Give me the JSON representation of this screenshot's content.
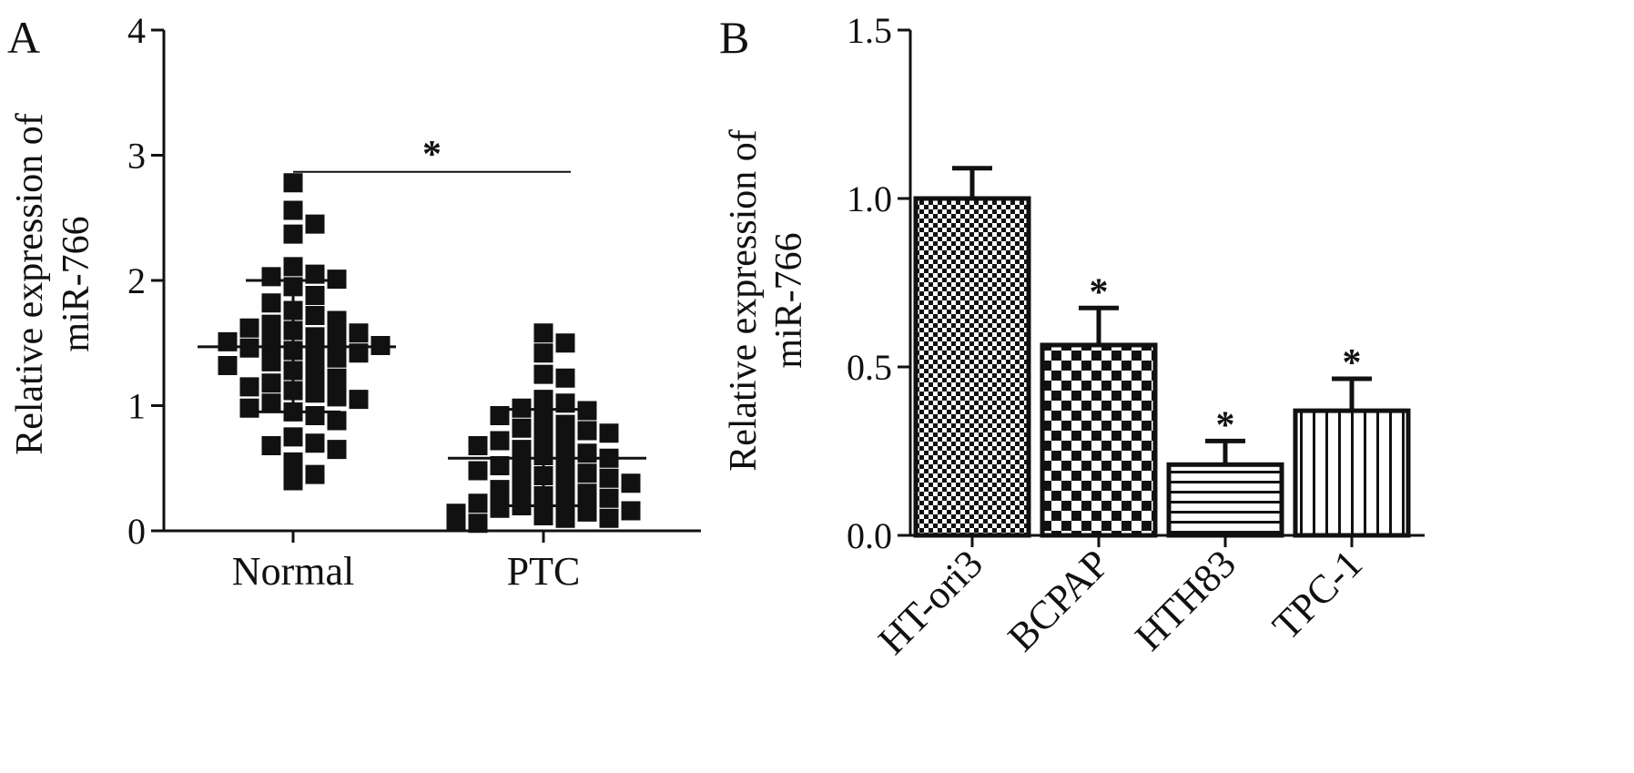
{
  "panel_a": {
    "letter": "A"
  },
  "panel_b": {
    "letter": "B"
  },
  "chart_data": [
    {
      "type": "scatter",
      "categories": [
        "Normal",
        "PTC"
      ],
      "ylabel_line1": "Relative expression of",
      "ylabel_line2": "miR-766",
      "ylim": [
        0,
        4
      ],
      "yticks": [
        0,
        1,
        2,
        3,
        4
      ],
      "marker_color": "#111111",
      "groups": [
        {
          "name": "Normal",
          "mean": 1.47,
          "sd_upper": 2.0,
          "sd_lower": 0.95,
          "points": [
            2.78,
            2.56,
            2.45,
            2.37,
            2.11,
            2.05,
            2.03,
            2.01,
            1.95,
            1.88,
            1.82,
            1.76,
            1.72,
            1.68,
            1.65,
            1.62,
            1.6,
            1.58,
            1.55,
            1.53,
            1.51,
            1.5,
            1.48,
            1.46,
            1.44,
            1.42,
            1.4,
            1.38,
            1.35,
            1.32,
            1.28,
            1.25,
            1.22,
            1.18,
            1.15,
            1.12,
            1.1,
            1.07,
            1.05,
            1.02,
            0.98,
            0.95,
            0.92,
            0.88,
            0.75,
            0.7,
            0.68,
            0.65,
            0.55,
            0.45,
            0.4
          ]
        },
        {
          "name": "PTC",
          "mean": 0.58,
          "sd_upper": 0.97,
          "sd_lower": 0.2,
          "points": [
            1.58,
            1.5,
            1.42,
            1.25,
            1.22,
            1.05,
            1.02,
            0.98,
            0.96,
            0.92,
            0.9,
            0.85,
            0.82,
            0.8,
            0.78,
            0.75,
            0.72,
            0.7,
            0.68,
            0.65,
            0.62,
            0.6,
            0.58,
            0.55,
            0.52,
            0.5,
            0.48,
            0.46,
            0.44,
            0.42,
            0.4,
            0.38,
            0.35,
            0.33,
            0.3,
            0.28,
            0.26,
            0.25,
            0.22,
            0.2,
            0.18,
            0.16,
            0.15,
            0.14,
            0.12,
            0.12,
            0.1,
            0.1,
            0.08,
            0.06
          ]
        }
      ],
      "annotations": [
        {
          "text": "*",
          "between": [
            "Normal",
            "PTC"
          ],
          "y": 2.94
        }
      ]
    },
    {
      "type": "bar",
      "categories": [
        "HT-ori3",
        "BCPAP",
        "HTH83",
        "TPC-1"
      ],
      "values": [
        1.0,
        0.565,
        0.21,
        0.37
      ],
      "errors": [
        0.09,
        0.11,
        0.07,
        0.095
      ],
      "significance": [
        "",
        "*",
        "*",
        "*"
      ],
      "fill_patterns": [
        "dots",
        "checker",
        "horizontal-lines",
        "vertical-lines"
      ],
      "ylabel_line1": "Relative expression of",
      "ylabel_line2": "miR-766",
      "ylim": [
        0,
        1.5
      ],
      "yticks": [
        "0.0",
        "0.5",
        "1.0",
        "1.5"
      ],
      "bar_stroke": "#111111"
    }
  ]
}
